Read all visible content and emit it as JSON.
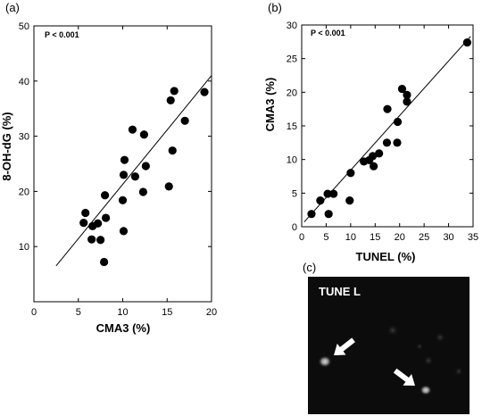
{
  "chart_data": [
    {
      "panel_label": "(a)",
      "type": "scatter",
      "annotation": "P < 0.001",
      "xlabel": "CMA3 (%)",
      "ylabel": "8-OH-dG (%)",
      "xlim": [
        0,
        20
      ],
      "ylim": [
        0,
        50
      ],
      "xticks": [
        0,
        5,
        10,
        15,
        20
      ],
      "yticks": [
        10,
        20,
        30,
        40,
        50
      ],
      "points": [
        {
          "x": 5.6,
          "y": 14.3
        },
        {
          "x": 5.8,
          "y": 16.1
        },
        {
          "x": 6.5,
          "y": 11.3
        },
        {
          "x": 6.6,
          "y": 13.7
        },
        {
          "x": 7.2,
          "y": 14.2
        },
        {
          "x": 7.5,
          "y": 11.2
        },
        {
          "x": 7.9,
          "y": 7.2
        },
        {
          "x": 8.0,
          "y": 19.3
        },
        {
          "x": 8.1,
          "y": 15.2
        },
        {
          "x": 10.0,
          "y": 18.4
        },
        {
          "x": 10.1,
          "y": 12.8
        },
        {
          "x": 10.1,
          "y": 23.0
        },
        {
          "x": 10.2,
          "y": 25.7
        },
        {
          "x": 11.1,
          "y": 31.2
        },
        {
          "x": 11.4,
          "y": 22.7
        },
        {
          "x": 12.3,
          "y": 19.9
        },
        {
          "x": 12.4,
          "y": 30.3
        },
        {
          "x": 12.6,
          "y": 24.6
        },
        {
          "x": 15.2,
          "y": 20.9
        },
        {
          "x": 15.4,
          "y": 36.5
        },
        {
          "x": 15.6,
          "y": 27.4
        },
        {
          "x": 15.8,
          "y": 38.2
        },
        {
          "x": 17.0,
          "y": 32.8
        },
        {
          "x": 19.2,
          "y": 38.0
        }
      ],
      "fit_line": {
        "x": [
          2.5,
          20
        ],
        "y": [
          6.5,
          41.0
        ]
      }
    },
    {
      "panel_label": "(b)",
      "type": "scatter",
      "annotation": "P < 0.001",
      "xlabel": "TUNEL (%)",
      "ylabel": "CMA3 (%)",
      "xlim": [
        0,
        35
      ],
      "ylim": [
        0,
        30
      ],
      "xticks": [
        0,
        5,
        10,
        15,
        20,
        25,
        30,
        35
      ],
      "yticks": [
        0,
        5,
        10,
        15,
        20,
        25,
        30
      ],
      "points": [
        {
          "x": 2.0,
          "y": 1.9
        },
        {
          "x": 3.8,
          "y": 3.9
        },
        {
          "x": 5.3,
          "y": 4.9
        },
        {
          "x": 5.5,
          "y": 1.9
        },
        {
          "x": 6.5,
          "y": 4.9
        },
        {
          "x": 9.8,
          "y": 3.9
        },
        {
          "x": 10.0,
          "y": 8.0
        },
        {
          "x": 12.7,
          "y": 9.7
        },
        {
          "x": 13.8,
          "y": 9.9
        },
        {
          "x": 14.5,
          "y": 10.5
        },
        {
          "x": 14.7,
          "y": 9.0
        },
        {
          "x": 15.8,
          "y": 10.9
        },
        {
          "x": 17.4,
          "y": 12.5
        },
        {
          "x": 17.5,
          "y": 17.5
        },
        {
          "x": 19.5,
          "y": 12.5
        },
        {
          "x": 19.6,
          "y": 15.6
        },
        {
          "x": 20.5,
          "y": 20.5
        },
        {
          "x": 21.5,
          "y": 18.6
        },
        {
          "x": 21.5,
          "y": 19.6
        },
        {
          "x": 33.8,
          "y": 27.4
        }
      ],
      "fit_line": {
        "x": [
          0.5,
          34.5
        ],
        "y": [
          0.7,
          28.3
        ]
      }
    }
  ],
  "micrograph": {
    "panel_label": "(c)",
    "label": "TUNE L",
    "arrow_icon": "arrow-icon"
  },
  "colors": {
    "background": "#ffffff",
    "ink": "#000000",
    "micro_bg": "#0c0c0c"
  }
}
